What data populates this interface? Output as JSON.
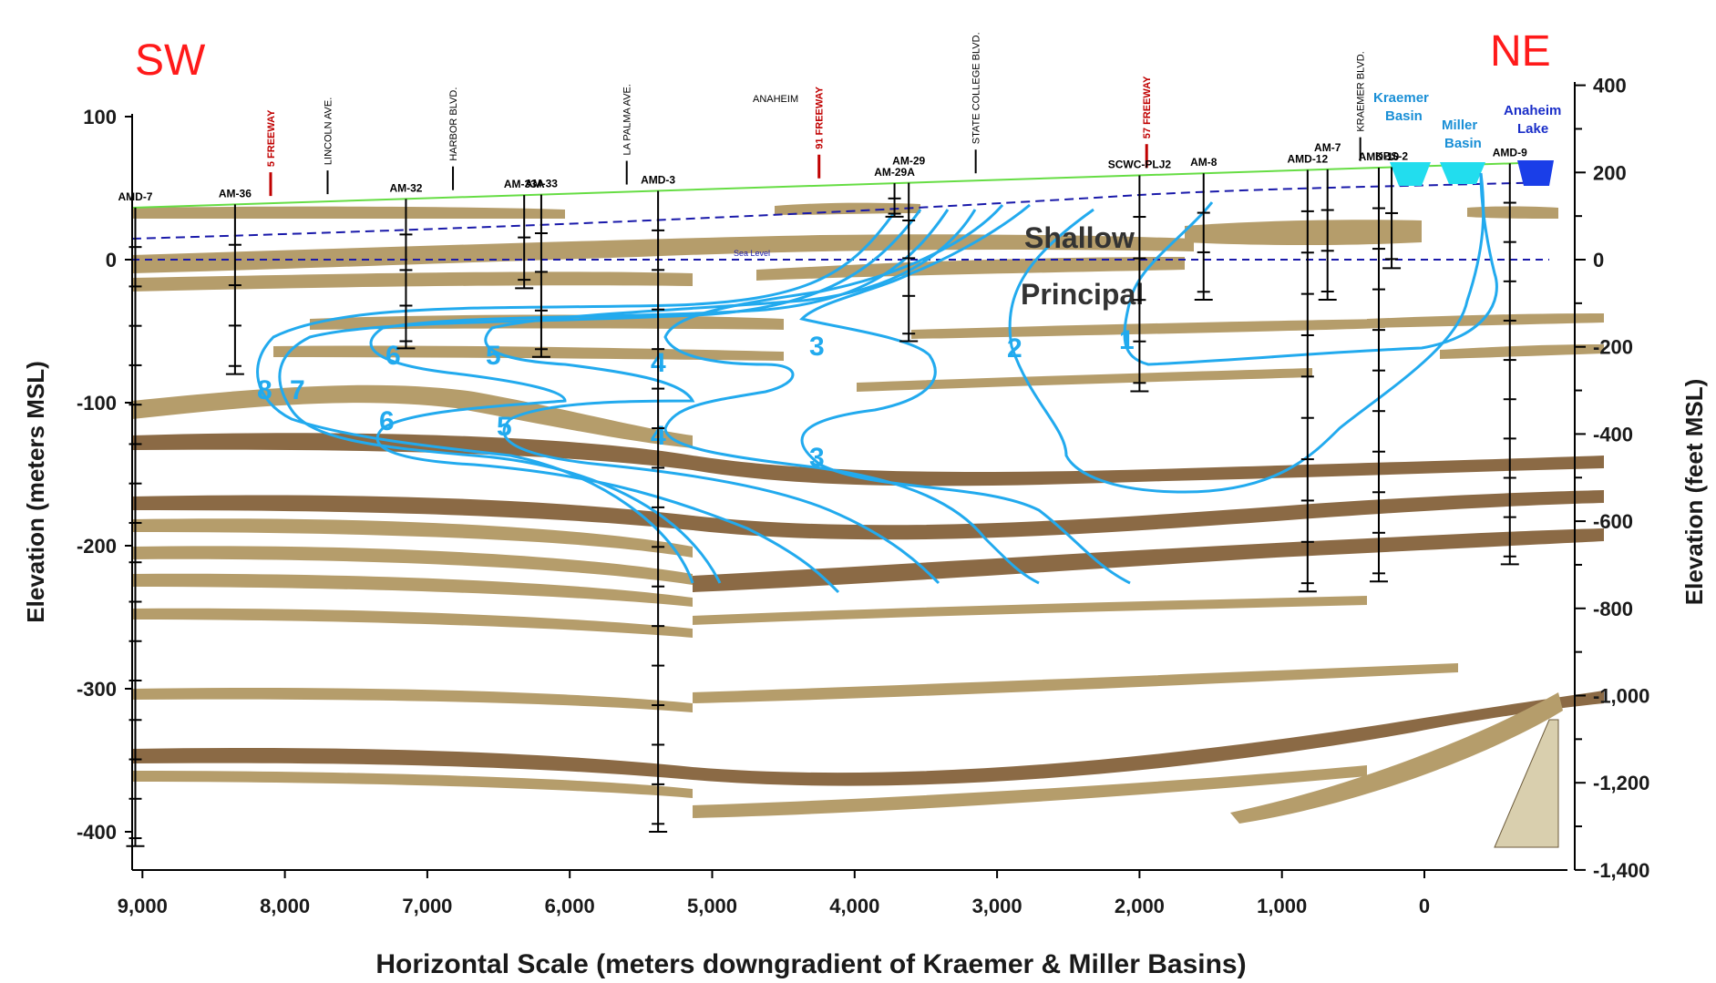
{
  "direction_labels": {
    "sw": "SW",
    "ne": "NE"
  },
  "left_axis": {
    "label": "Elevation (meters MSL)",
    "ticks": [
      {
        "value": 100,
        "label": "100"
      },
      {
        "value": 0,
        "label": "0"
      },
      {
        "value": -100,
        "label": "-100"
      },
      {
        "value": -200,
        "label": "-200"
      },
      {
        "value": -300,
        "label": "-300"
      },
      {
        "value": -400,
        "label": "-400"
      }
    ]
  },
  "right_axis": {
    "label": "Elevation (feet MSL)",
    "ticks": [
      {
        "value": 400,
        "label": "400"
      },
      {
        "value": 200,
        "label": "200"
      },
      {
        "value": 0,
        "label": "0"
      },
      {
        "value": -200,
        "label": "-200"
      },
      {
        "value": -400,
        "label": "-400"
      },
      {
        "value": -600,
        "label": "-600"
      },
      {
        "value": -800,
        "label": "-800"
      },
      {
        "value": -1000,
        "label": "-1,000"
      },
      {
        "value": -1200,
        "label": "-1,200"
      },
      {
        "value": -1400,
        "label": "-1,400"
      }
    ]
  },
  "x_axis": {
    "label": "Horizontal Scale (meters downgradient of Kraemer & Miller Basins)",
    "ticks": [
      {
        "value": 9000,
        "label": "9,000"
      },
      {
        "value": 8000,
        "label": "8,000"
      },
      {
        "value": 7000,
        "label": "7,000"
      },
      {
        "value": 6000,
        "label": "6,000"
      },
      {
        "value": 5000,
        "label": "5,000"
      },
      {
        "value": 4000,
        "label": "4,000"
      },
      {
        "value": 3000,
        "label": "3,000"
      },
      {
        "value": 2000,
        "label": "2,000"
      },
      {
        "value": 1000,
        "label": "1,000"
      },
      {
        "value": 0,
        "label": "0"
      }
    ]
  },
  "wells": [
    {
      "name": "AMD-7",
      "x": 9050,
      "bottom": -410
    },
    {
      "name": "AM-36",
      "x": 8350,
      "bottom": -80
    },
    {
      "name": "AM-32",
      "x": 7150,
      "bottom": -62
    },
    {
      "name": "AM-33A",
      "x": 6320,
      "bottom": -20
    },
    {
      "name": "AM-33",
      "x": 6200,
      "bottom": -68
    },
    {
      "name": "AMD-3",
      "x": 5380,
      "bottom": -400
    },
    {
      "name": "AM-29A",
      "x": 3720,
      "bottom": 30
    },
    {
      "name": "AM-29",
      "x": 3620,
      "bottom": -57
    },
    {
      "name": "SCWC-PLJ2",
      "x": 2000,
      "bottom": -92
    },
    {
      "name": "AM-8",
      "x": 1550,
      "bottom": -28
    },
    {
      "name": "AMD-12",
      "x": 820,
      "bottom": -232
    },
    {
      "name": "AM-7",
      "x": 680,
      "bottom": -28
    },
    {
      "name": "AMD-10",
      "x": 320,
      "bottom": -225
    },
    {
      "name": "KBS-2",
      "x": 230,
      "bottom": -6
    },
    {
      "name": "AMD-9",
      "x": -600,
      "bottom": -213
    }
  ],
  "streets": [
    {
      "name": "5 FREEWAY",
      "x": 8100,
      "freeway": true
    },
    {
      "name": "LINCOLN AVE.",
      "x": 7700,
      "freeway": false
    },
    {
      "name": "HARBOR BLVD.",
      "x": 6820,
      "freeway": false
    },
    {
      "name": "LA PALMA AVE.",
      "x": 5600,
      "freeway": false
    },
    {
      "name": "91 FREEWAY",
      "x": 4250,
      "freeway": true
    },
    {
      "name": "STATE COLLEGE BLVD.",
      "x": 3150,
      "freeway": false
    },
    {
      "name": "57 FREEWAY",
      "x": 1950,
      "freeway": true
    },
    {
      "name": "KRAEMER BLVD.",
      "x": 450,
      "freeway": false
    }
  ],
  "anaheim_label": "ANAHEIM",
  "sea_level_marker": "Sea Level",
  "basins": [
    {
      "line1": "Kraemer",
      "line2": "Basin",
      "kind": "basin"
    },
    {
      "line1": "Miller",
      "line2": "Basin",
      "kind": "basin"
    },
    {
      "line1": "Anaheim",
      "line2": "Lake",
      "kind": "lake"
    }
  ],
  "zones": {
    "shallow": "Shallow",
    "principal": "Principal"
  },
  "contour_labels": [
    "1",
    "2",
    "3",
    "3",
    "4",
    "4",
    "5",
    "5",
    "6",
    "6",
    "7",
    "8"
  ],
  "colors": {
    "aquitard_light": "#b59d6b",
    "aquitard_dark": "#8b6a45",
    "contour": "#22aaee",
    "ground": "#66dd44",
    "water_table": "#1a1aaa",
    "direction": "#ff1a1a"
  }
}
